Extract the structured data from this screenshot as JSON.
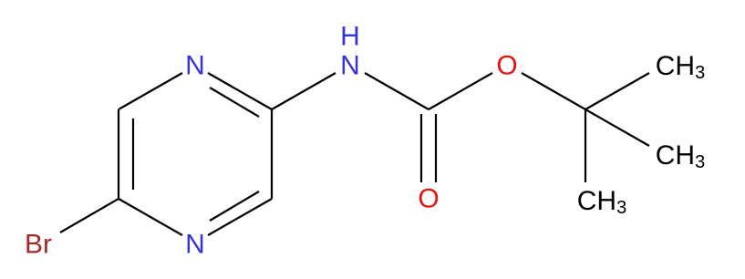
{
  "molecule": {
    "atoms": [
      {
        "label": "N"
      },
      {
        "label": "N"
      },
      {
        "label": "Br"
      },
      {
        "label": "N",
        "hydrogen": "H"
      },
      {
        "label": "O"
      },
      {
        "label": "O"
      },
      {
        "label": "CH",
        "subscript": "3"
      },
      {
        "label": "CH",
        "subscript": "3"
      },
      {
        "label": "CH",
        "subscript": "3"
      }
    ]
  }
}
